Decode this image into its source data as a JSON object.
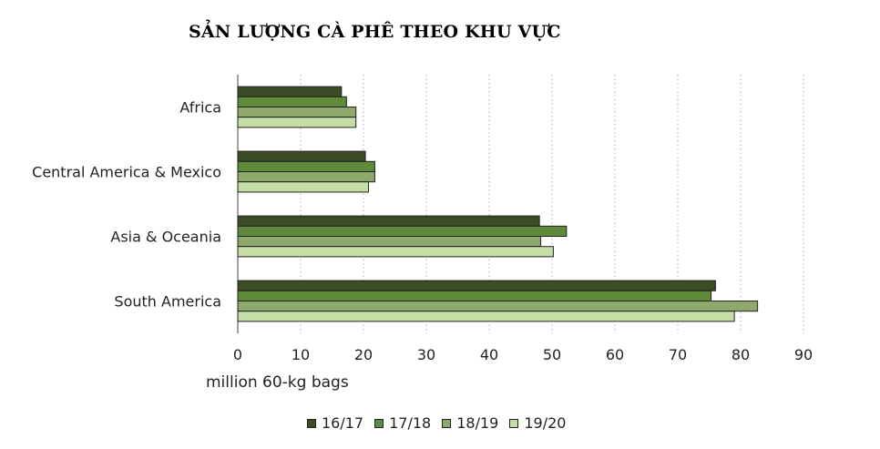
{
  "chart_data": {
    "type": "bar",
    "orientation": "horizontal",
    "title": "SẢN LƯỢNG CÀ PHÊ THEO KHU VỰC",
    "xlabel": "million 60-kg bags",
    "ylabel": "",
    "xlim": [
      0,
      90
    ],
    "x_ticks": [
      "0",
      "10",
      "20",
      "30",
      "40",
      "50",
      "60",
      "70",
      "80",
      "90"
    ],
    "grid": "vertical dotted",
    "legend_position": "bottom",
    "categories": [
      "Africa",
      "Central America & Mexico",
      "Asia & Oceania",
      "South America"
    ],
    "series": [
      {
        "name": "16/17",
        "color": "#3a4d25",
        "values": [
          16.5,
          20.3,
          48.0,
          76.0
        ]
      },
      {
        "name": "17/18",
        "color": "#5e8a3a",
        "values": [
          17.3,
          21.8,
          52.3,
          75.3
        ]
      },
      {
        "name": "18/19",
        "color": "#8ea96c",
        "values": [
          18.8,
          21.8,
          48.2,
          82.7
        ]
      },
      {
        "name": "19/20",
        "color": "#c4dea6",
        "values": [
          18.8,
          20.8,
          50.2,
          79.0
        ]
      }
    ]
  }
}
